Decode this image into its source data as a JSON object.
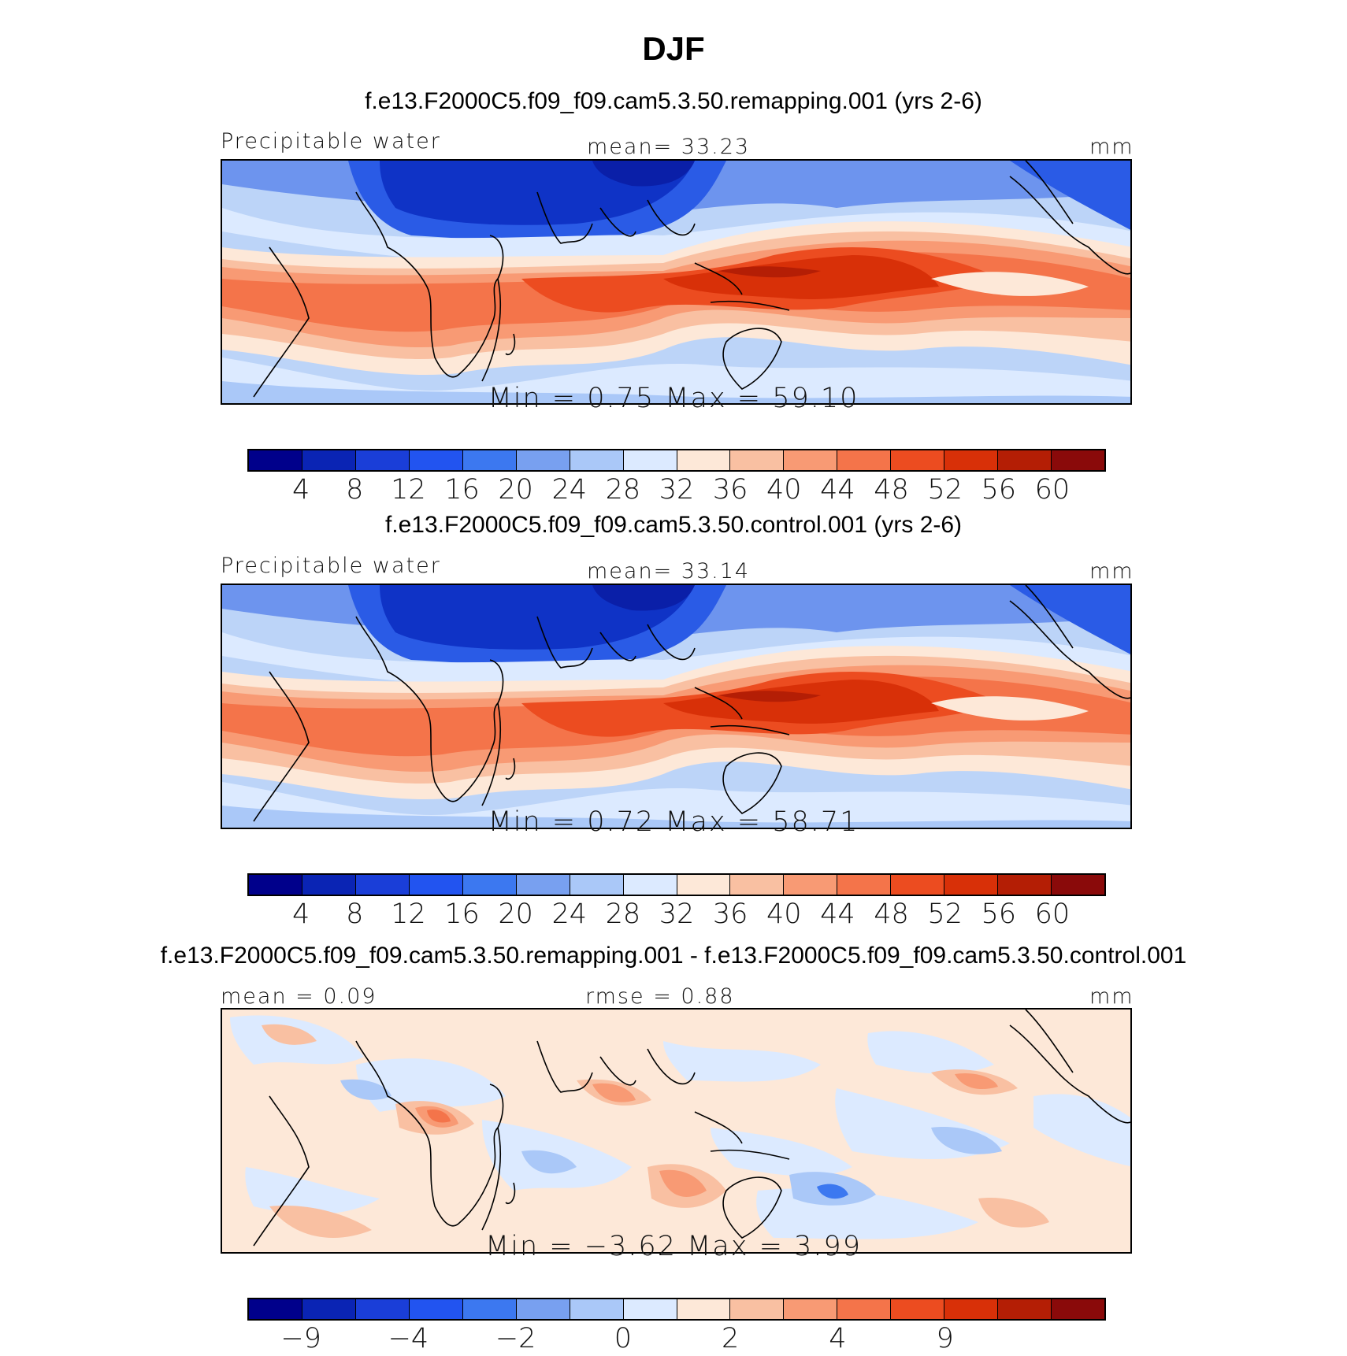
{
  "title": "DJF",
  "panels": [
    {
      "case_title": "f.e13.F2000C5.f09_f09.cam5.3.50.remapping.001 (yrs 2-6)",
      "left_label": "Precipitable water",
      "center_label": "mean=   33.23",
      "right_label": "mm",
      "stats": "Min  =     0.75  Max  =    59.10",
      "colorbar": {
        "colors": [
          "#00008b",
          "#0a24b4",
          "#1a3ed8",
          "#2254f0",
          "#3c78f0",
          "#78a0f0",
          "#aac8f8",
          "#dceaff",
          "#fde8d8",
          "#f9c0a2",
          "#f89a74",
          "#f4744a",
          "#ec4c20",
          "#d83008",
          "#b41e05",
          "#8a0a0a"
        ],
        "ticks": [
          "4",
          "8",
          "12",
          "16",
          "20",
          "24",
          "28",
          "32",
          "36",
          "40",
          "44",
          "48",
          "52",
          "56",
          "60"
        ]
      }
    },
    {
      "case_title": "f.e13.F2000C5.f09_f09.cam5.3.50.control.001 (yrs 2-6)",
      "left_label": "Precipitable water",
      "center_label": "mean=   33.14",
      "right_label": "mm",
      "stats": "Min  =     0.72  Max  =    58.71",
      "colorbar": {
        "colors": [
          "#00008b",
          "#0a24b4",
          "#1a3ed8",
          "#2254f0",
          "#3c78f0",
          "#78a0f0",
          "#aac8f8",
          "#dceaff",
          "#fde8d8",
          "#f9c0a2",
          "#f89a74",
          "#f4744a",
          "#ec4c20",
          "#d83008",
          "#b41e05",
          "#8a0a0a"
        ],
        "ticks": [
          "4",
          "8",
          "12",
          "16",
          "20",
          "24",
          "28",
          "32",
          "36",
          "40",
          "44",
          "48",
          "52",
          "56",
          "60"
        ]
      }
    },
    {
      "case_title": "f.e13.F2000C5.f09_f09.cam5.3.50.remapping.001 - f.e13.F2000C5.f09_f09.cam5.3.50.control.001",
      "left_label": "mean  =     0.09",
      "center_label": "rmse  =     0.88",
      "right_label": "mm",
      "stats": "Min  =   −3.62  Max  =     3.99",
      "colorbar": {
        "colors": [
          "#00008b",
          "#0a24b4",
          "#1a3ed8",
          "#2254f0",
          "#3c78f0",
          "#78a0f0",
          "#aac8f8",
          "#dceaff",
          "#fde8d8",
          "#f9c0a2",
          "#f89a74",
          "#f4744a",
          "#ec4c20",
          "#d83008",
          "#b41e05",
          "#8a0a0a"
        ],
        "ticks": [
          "−9",
          "",
          "−4",
          "",
          "−2",
          "",
          "0",
          "",
          "2",
          "",
          "4",
          "",
          "9",
          "",
          ""
        ]
      }
    }
  ]
}
